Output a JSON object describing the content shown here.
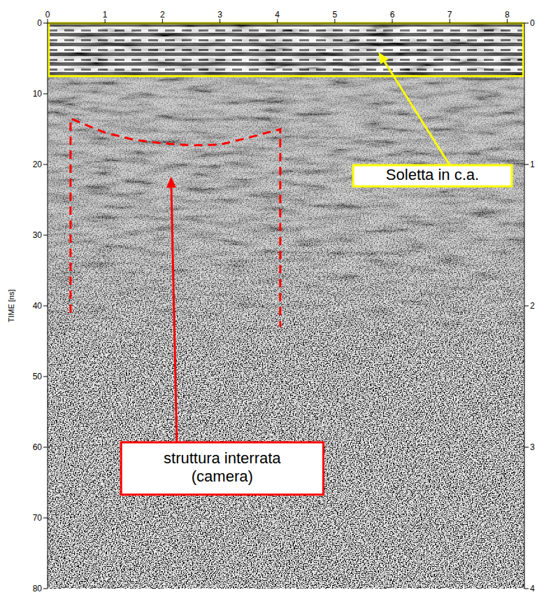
{
  "chart_data": {
    "type": "radargram",
    "ylabel": "TIME [ns]",
    "xlim": [
      0,
      8.3
    ],
    "xticks": [
      0,
      1,
      2,
      3,
      4,
      5,
      6,
      7,
      8
    ],
    "ylim": [
      0,
      80
    ],
    "yticks": [
      0,
      10,
      20,
      30,
      40,
      50,
      60,
      70,
      80
    ],
    "y2lim": [
      0,
      4
    ],
    "y2ticks": [
      0,
      1,
      2,
      3,
      4
    ],
    "annotations": [
      {
        "text": "Soletta in c.a.",
        "color": "#ffff00",
        "region": {
          "x": [
            0.02,
            8.28
          ],
          "y": [
            0,
            7.5
          ]
        },
        "arrow_to": {
          "x": 5.76,
          "y": 4.1
        }
      },
      {
        "text": "struttura interrata (camera)",
        "color": "#ff0000",
        "line_style": "dashed",
        "outline": {
          "x": [
            0.4,
            0.4,
            1.0,
            1.5,
            2.0,
            2.5,
            3.0,
            3.5,
            4.05,
            4.05
          ],
          "y": [
            41,
            13.5,
            15.5,
            16.5,
            17,
            17.3,
            17.2,
            16.2,
            15,
            43
          ]
        },
        "arrow_to": {
          "x": 2.15,
          "y": 21.7
        }
      }
    ]
  }
}
